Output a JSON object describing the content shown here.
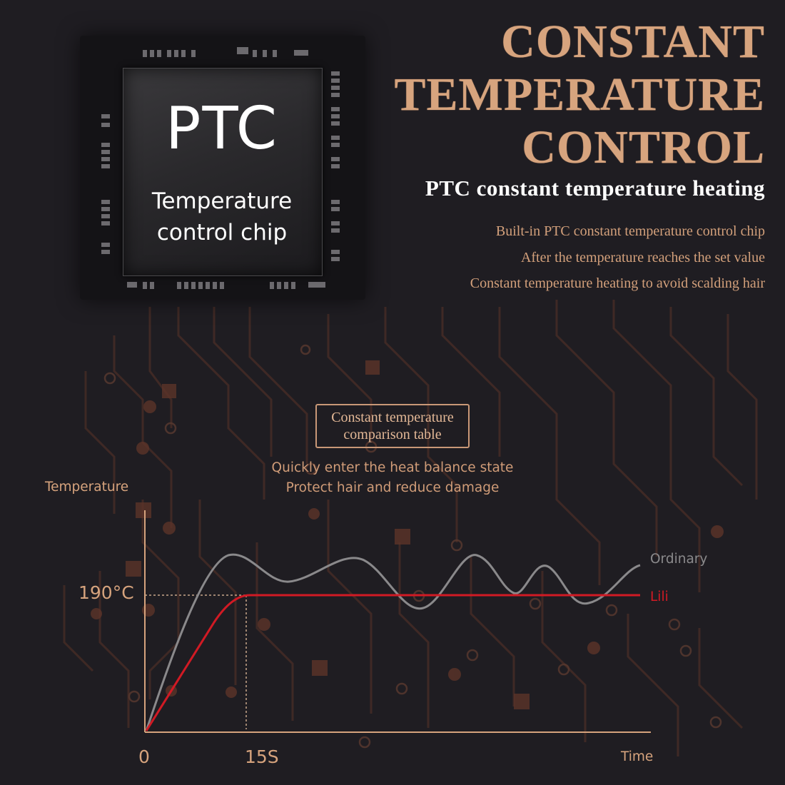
{
  "chip": {
    "name": "PTC",
    "desc_line1": "Temperature",
    "desc_line2": "control chip"
  },
  "headline": {
    "line1": "CONSTANT",
    "line2": "TEMPERATURE",
    "line3": "CONTROL",
    "subtitle": "PTC constant temperature heating"
  },
  "features": [
    "Built-in PTC constant temperature control chip",
    "After the temperature reaches the set value",
    "Constant temperature heating to avoid scalding hair"
  ],
  "table_label": {
    "line1": "Constant temperature",
    "line2": "comparison table"
  },
  "tagline": {
    "line1": "Quickly enter the heat balance state",
    "line2": "Protect hair and reduce damage"
  },
  "chart_data": {
    "type": "line",
    "ylabel": "Temperature",
    "xlabel": "Time",
    "x_ticks": [
      "0",
      "15S"
    ],
    "y_ticks": [
      "190°C"
    ],
    "series": [
      {
        "name": "Ordinary",
        "color": "#8a898b"
      },
      {
        "name": "Lili",
        "color": "#d11a24"
      }
    ]
  },
  "colors": {
    "background": "#1f1d22",
    "accent": "#d7a47e",
    "lili": "#d11a24",
    "ordinary": "#8a898b"
  }
}
